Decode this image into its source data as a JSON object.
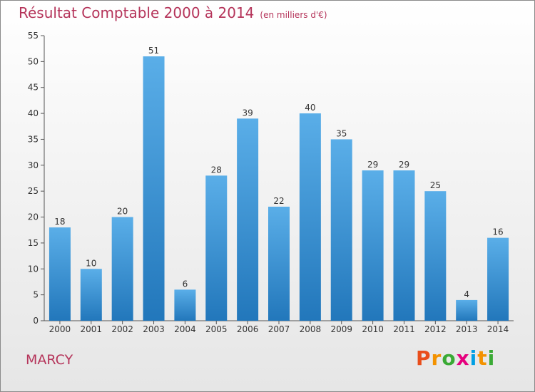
{
  "header": {
    "title": "Résultat Comptable 2000 à 2014",
    "subtitle": "(en milliers d'€)"
  },
  "footer": {
    "commune": "MARCY",
    "logo_letters": [
      {
        "ch": "P",
        "color": "#e94e1b"
      },
      {
        "ch": "r",
        "color": "#f39200"
      },
      {
        "ch": "o",
        "color": "#3aaa35"
      },
      {
        "ch": "x",
        "color": "#e6007e"
      },
      {
        "ch": "i",
        "color": "#009fe3"
      },
      {
        "ch": "t",
        "color": "#f39200"
      },
      {
        "ch": "i",
        "color": "#3aaa35"
      }
    ]
  },
  "chart_data": {
    "type": "bar",
    "title": "Résultat Comptable 2000 à 2014",
    "subtitle": "(en milliers d'€)",
    "categories": [
      "2000",
      "2001",
      "2002",
      "2003",
      "2004",
      "2005",
      "2006",
      "2007",
      "2008",
      "2009",
      "2010",
      "2011",
      "2012",
      "2013",
      "2014"
    ],
    "values": [
      18,
      10,
      20,
      51,
      6,
      28,
      39,
      22,
      40,
      35,
      29,
      29,
      25,
      4,
      16
    ],
    "ylim": [
      0,
      55
    ],
    "yticks": [
      0,
      5,
      10,
      15,
      20,
      25,
      30,
      35,
      40,
      45,
      50,
      55
    ],
    "grid": false,
    "bar_color_top": "#5aaee8",
    "bar_color_bottom": "#2277bb"
  }
}
